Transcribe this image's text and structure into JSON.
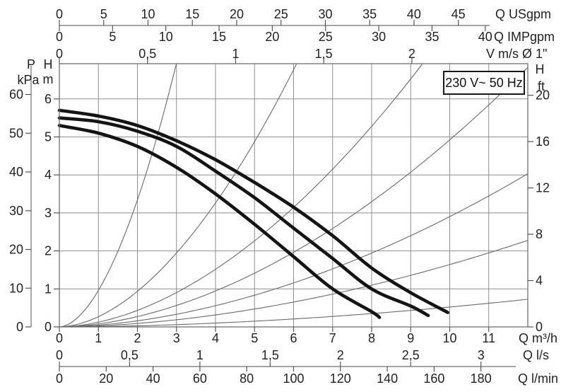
{
  "chart_data": {
    "type": "line",
    "title_box": "230 V~ 50 Hz",
    "description": "Pump performance curves: head vs flow with three speed curves and pipe-loss system curves",
    "axes": {
      "top": [
        {
          "name": "flow-usgpm",
          "unit": "Q USgpm",
          "tick_labels": [
            "0",
            "5",
            "10",
            "15",
            "20",
            "25",
            "30",
            "35",
            "40",
            "45"
          ],
          "tick_values": [
            0,
            5,
            10,
            15,
            20,
            25,
            30,
            35,
            40,
            45
          ]
        },
        {
          "name": "flow-impgpm",
          "unit": "Q IMPgpm",
          "tick_labels": [
            "0",
            "5",
            "10",
            "15",
            "20",
            "25",
            "30",
            "35",
            "40"
          ],
          "tick_values": [
            0,
            5,
            10,
            15,
            20,
            25,
            30,
            35,
            40
          ]
        },
        {
          "name": "velocity",
          "unit": "V m/s Ø 1\"",
          "tick_labels": [
            "0",
            "0,5",
            "1",
            "1,5",
            "2"
          ],
          "tick_values": [
            0,
            0.5,
            1,
            1.5,
            2
          ]
        }
      ],
      "left": [
        {
          "name": "pressure-kpa",
          "unit_lines": [
            "P",
            "kPa"
          ],
          "tick_labels": [
            "0",
            "10",
            "20",
            "30",
            "40",
            "50",
            "60"
          ],
          "tick_values": [
            0,
            10,
            20,
            30,
            40,
            50,
            60
          ]
        },
        {
          "name": "head-m",
          "unit_lines": [
            "H",
            "m"
          ],
          "tick_labels": [
            "0",
            "1",
            "2",
            "3",
            "4",
            "5",
            "6"
          ],
          "tick_values": [
            0,
            1,
            2,
            3,
            4,
            5,
            6
          ]
        }
      ],
      "right": [
        {
          "name": "head-ft",
          "unit_lines": [
            "H",
            "ft"
          ],
          "tick_labels": [
            "0",
            "4",
            "8",
            "12",
            "16",
            "20"
          ],
          "tick_values": [
            0,
            4,
            8,
            12,
            16,
            20
          ]
        }
      ],
      "bottom": [
        {
          "name": "flow-m3h",
          "unit": "Q m³/h",
          "tick_labels": [
            "0",
            "1",
            "2",
            "3",
            "4",
            "5",
            "6",
            "7",
            "8",
            "9",
            "10",
            "11"
          ],
          "tick_values": [
            0,
            1,
            2,
            3,
            4,
            5,
            6,
            7,
            8,
            9,
            10,
            11
          ]
        },
        {
          "name": "flow-ls",
          "unit": "Q l/s",
          "tick_labels": [
            "0",
            "0,5",
            "1",
            "1,5",
            "2",
            "2,5",
            "3"
          ],
          "tick_values": [
            0,
            0.5,
            1,
            1.5,
            2,
            2.5,
            3
          ]
        },
        {
          "name": "flow-lmin",
          "unit": "Q l/min",
          "tick_labels": [
            "0",
            "20",
            "40",
            "60",
            "80",
            "100",
            "120",
            "140",
            "160",
            "180"
          ],
          "tick_values": [
            0,
            20,
            40,
            60,
            80,
            100,
            120,
            140,
            160,
            180
          ]
        }
      ]
    },
    "xlabel": "Q m³/h",
    "ylabel": "H m",
    "xlim": [
      0,
      12
    ],
    "ylim": [
      0,
      6.93
    ],
    "grid": true,
    "pump_curves": [
      {
        "name": "speed-curve-top",
        "points_q_h": [
          [
            0,
            5.7
          ],
          [
            1,
            5.55
          ],
          [
            2,
            5.3
          ],
          [
            3,
            4.9
          ],
          [
            4,
            4.4
          ],
          [
            5,
            3.8
          ],
          [
            6,
            3.15
          ],
          [
            7,
            2.4
          ],
          [
            8,
            1.55
          ],
          [
            9,
            0.9
          ],
          [
            9.95,
            0.38
          ]
        ]
      },
      {
        "name": "speed-curve-middle",
        "points_q_h": [
          [
            0,
            5.5
          ],
          [
            1,
            5.4
          ],
          [
            2,
            5.15
          ],
          [
            3,
            4.75
          ],
          [
            4,
            4.1
          ],
          [
            5,
            3.4
          ],
          [
            6,
            2.6
          ],
          [
            7,
            1.8
          ],
          [
            8,
            1.0
          ],
          [
            9,
            0.55
          ],
          [
            9.45,
            0.3
          ]
        ]
      },
      {
        "name": "speed-curve-bottom",
        "points_q_h": [
          [
            0,
            5.3
          ],
          [
            1,
            5.1
          ],
          [
            2,
            4.75
          ],
          [
            3,
            4.2
          ],
          [
            4,
            3.5
          ],
          [
            5,
            2.7
          ],
          [
            6,
            1.85
          ],
          [
            7,
            1.0
          ],
          [
            8,
            0.4
          ],
          [
            8.2,
            0.25
          ]
        ]
      }
    ],
    "system_curves": [
      {
        "name": "loss-curve-1",
        "k": 0.96,
        "exp": 1.8
      },
      {
        "name": "loss-curve-2",
        "k": 0.269,
        "exp": 1.8
      },
      {
        "name": "loss-curve-3",
        "k": 0.125,
        "exp": 1.8
      },
      {
        "name": "loss-curve-4",
        "k": 0.078,
        "exp": 1.8
      },
      {
        "name": "loss-curve-5",
        "k": 0.046,
        "exp": 1.8
      },
      {
        "name": "loss-curve-6",
        "k": 0.026,
        "exp": 1.8
      },
      {
        "name": "loss-curve-7",
        "k": 0.0083,
        "exp": 1.8
      }
    ],
    "colors": {
      "background": "#ffffff",
      "grid": "#8f8f8f",
      "border": "#6f6f6f",
      "tick": "#555555",
      "text": "#222222",
      "pump_curve": "#141414",
      "system_curve": "#6a6a6a"
    }
  }
}
